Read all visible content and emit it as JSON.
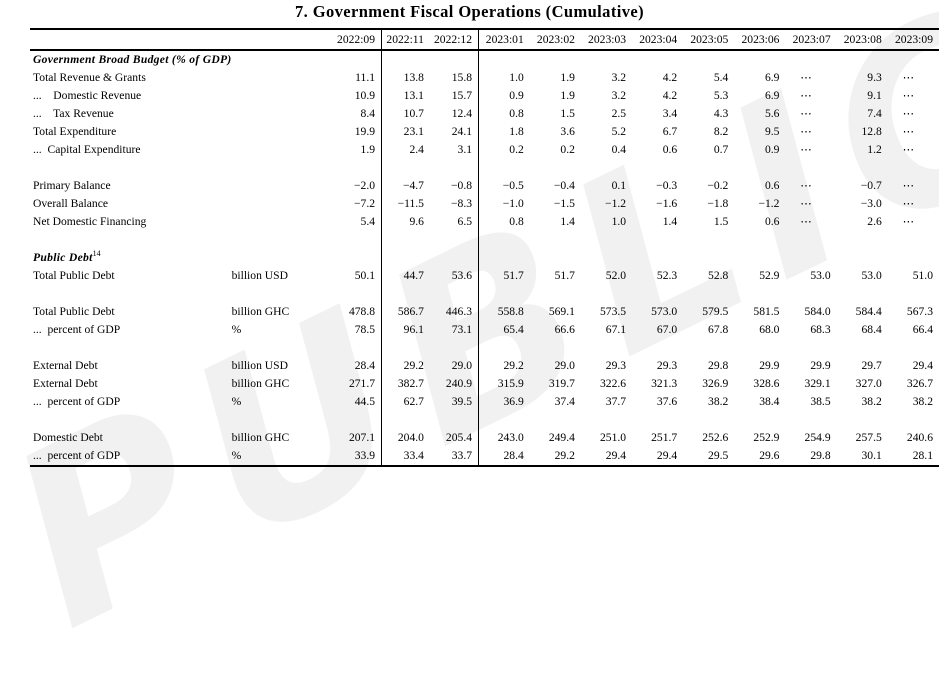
{
  "title": "7. Government Fiscal Operations (Cumulative)",
  "watermark": "PUBLIC",
  "table": {
    "columns": [
      "2022:09",
      "2022:11",
      "2022:12",
      "2023:01",
      "2023:02",
      "2023:03",
      "2023:04",
      "2023:05",
      "2023:06",
      "2023:07",
      "2023:08",
      "2023:09"
    ],
    "rows": [
      {
        "type": "section",
        "label": "Government Broad Budget (% of GDP)",
        "sup": ""
      },
      {
        "type": "data",
        "label": "Total Revenue & Grants",
        "unit": "",
        "values": [
          "11.1",
          "13.8",
          "15.8",
          "1.0",
          "1.9",
          "3.2",
          "4.2",
          "5.4",
          "6.9",
          "⋯",
          "9.3",
          "⋯"
        ]
      },
      {
        "type": "data",
        "label": "...    Domestic Revenue",
        "unit": "",
        "values": [
          "10.9",
          "13.1",
          "15.7",
          "0.9",
          "1.9",
          "3.2",
          "4.2",
          "5.3",
          "6.9",
          "⋯",
          "9.1",
          "⋯"
        ]
      },
      {
        "type": "data",
        "label": "...    Tax Revenue",
        "unit": "",
        "values": [
          "8.4",
          "10.7",
          "12.4",
          "0.8",
          "1.5",
          "2.5",
          "3.4",
          "4.3",
          "5.6",
          "⋯",
          "7.4",
          "⋯"
        ]
      },
      {
        "type": "data",
        "label": "Total Expenditure",
        "unit": "",
        "values": [
          "19.9",
          "23.1",
          "24.1",
          "1.8",
          "3.6",
          "5.2",
          "6.7",
          "8.2",
          "9.5",
          "⋯",
          "12.8",
          "⋯"
        ]
      },
      {
        "type": "data",
        "label": "...  Capital Expenditure",
        "unit": "",
        "values": [
          "1.9",
          "2.4",
          "3.1",
          "0.2",
          "0.2",
          "0.4",
          "0.6",
          "0.7",
          "0.9",
          "⋯",
          "1.2",
          "⋯"
        ]
      },
      {
        "type": "spacer"
      },
      {
        "type": "data",
        "label": "Primary Balance",
        "unit": "",
        "values": [
          "−2.0",
          "−4.7",
          "−0.8",
          "−0.5",
          "−0.4",
          "0.1",
          "−0.3",
          "−0.2",
          "0.6",
          "⋯",
          "−0.7",
          "⋯"
        ]
      },
      {
        "type": "data",
        "label": "Overall Balance",
        "unit": "",
        "values": [
          "−7.2",
          "−11.5",
          "−8.3",
          "−1.0",
          "−1.5",
          "−1.2",
          "−1.6",
          "−1.8",
          "−1.2",
          "⋯",
          "−3.0",
          "⋯"
        ]
      },
      {
        "type": "data",
        "label": "Net Domestic Financing",
        "unit": "",
        "values": [
          "5.4",
          "9.6",
          "6.5",
          "0.8",
          "1.4",
          "1.0",
          "1.4",
          "1.5",
          "0.6",
          "⋯",
          "2.6",
          "⋯"
        ]
      },
      {
        "type": "spacer"
      },
      {
        "type": "section",
        "label": "Public Debt",
        "sup": "14"
      },
      {
        "type": "data",
        "label": "Total Public Debt",
        "unit": "billion USD",
        "values": [
          "50.1",
          "44.7",
          "53.6",
          "51.7",
          "51.7",
          "52.0",
          "52.3",
          "52.8",
          "52.9",
          "53.0",
          "53.0",
          "51.0"
        ]
      },
      {
        "type": "spacer"
      },
      {
        "type": "data",
        "label": "Total Public Debt",
        "unit": "billion GHC",
        "values": [
          "478.8",
          "586.7",
          "446.3",
          "558.8",
          "569.1",
          "573.5",
          "573.0",
          "579.5",
          "581.5",
          "584.0",
          "584.4",
          "567.3"
        ]
      },
      {
        "type": "data",
        "label": "...  percent of GDP",
        "unit": "%",
        "values": [
          "78.5",
          "96.1",
          "73.1",
          "65.4",
          "66.6",
          "67.1",
          "67.0",
          "67.8",
          "68.0",
          "68.3",
          "68.4",
          "66.4"
        ]
      },
      {
        "type": "spacer"
      },
      {
        "type": "data",
        "label": "External Debt",
        "unit": "billion USD",
        "values": [
          "28.4",
          "29.2",
          "29.0",
          "29.2",
          "29.0",
          "29.3",
          "29.3",
          "29.8",
          "29.9",
          "29.9",
          "29.7",
          "29.4"
        ]
      },
      {
        "type": "data",
        "label": "External Debt",
        "unit": "billion GHC",
        "values": [
          "271.7",
          "382.7",
          "240.9",
          "315.9",
          "319.7",
          "322.6",
          "321.3",
          "326.9",
          "328.6",
          "329.1",
          "327.0",
          "326.7"
        ]
      },
      {
        "type": "data",
        "label": "...  percent of GDP",
        "unit": "%",
        "values": [
          "44.5",
          "62.7",
          "39.5",
          "36.9",
          "37.4",
          "37.7",
          "37.6",
          "38.2",
          "38.4",
          "38.5",
          "38.2",
          "38.2"
        ]
      },
      {
        "type": "spacer"
      },
      {
        "type": "data",
        "label": "Domestic Debt",
        "unit": "billion GHC",
        "values": [
          "207.1",
          "204.0",
          "205.4",
          "243.0",
          "249.4",
          "251.0",
          "251.7",
          "252.6",
          "252.9",
          "254.9",
          "257.5",
          "240.6"
        ]
      },
      {
        "type": "data",
        "label": "...  percent of GDP",
        "unit": "%",
        "values": [
          "33.9",
          "33.4",
          "33.7",
          "28.4",
          "29.2",
          "29.4",
          "29.4",
          "29.5",
          "29.6",
          "29.8",
          "30.1",
          "28.1"
        ]
      }
    ]
  }
}
